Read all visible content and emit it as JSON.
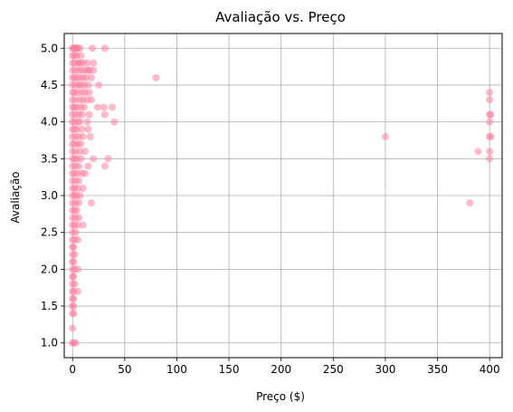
{
  "chart_data": {
    "type": "scatter",
    "title": "Avaliação vs. Preço",
    "xlabel": "Preço ($)",
    "ylabel": "Avaliação",
    "xlim": [
      -8,
      412
    ],
    "ylim": [
      0.8,
      5.2
    ],
    "xticks": [
      0,
      50,
      100,
      150,
      200,
      250,
      300,
      350,
      400
    ],
    "yticks": [
      1.0,
      1.5,
      2.0,
      2.5,
      3.0,
      3.5,
      4.0,
      4.5,
      5.0
    ],
    "xtick_labels": [
      "0",
      "50",
      "100",
      "150",
      "200",
      "250",
      "300",
      "350",
      "400"
    ],
    "ytick_labels": [
      "1.0",
      "1.5",
      "2.0",
      "2.5",
      "3.0",
      "3.5",
      "4.0",
      "4.5",
      "5.0"
    ],
    "grid": true,
    "colors": {
      "point": "#ff7f9f",
      "grid": "#b0b0b0",
      "axis": "#000000"
    },
    "point_alpha": 0.55,
    "series": [
      {
        "points": [
          [
            0,
            5.0
          ],
          [
            1,
            5.0
          ],
          [
            2,
            5.0
          ],
          [
            3,
            5.0
          ],
          [
            4,
            5.0
          ],
          [
            5,
            5.0
          ],
          [
            7,
            5.0
          ],
          [
            19,
            5.0
          ],
          [
            31,
            5.0
          ],
          [
            0,
            4.9
          ],
          [
            2,
            4.9
          ],
          [
            4,
            4.9
          ],
          [
            8,
            4.9
          ],
          [
            0,
            4.8
          ],
          [
            2,
            4.8
          ],
          [
            5,
            4.8
          ],
          [
            6,
            4.8
          ],
          [
            8,
            4.8
          ],
          [
            10,
            4.8
          ],
          [
            14,
            4.8
          ],
          [
            20,
            4.8
          ],
          [
            0,
            4.7
          ],
          [
            3,
            4.7
          ],
          [
            6,
            4.7
          ],
          [
            9,
            4.7
          ],
          [
            12,
            4.7
          ],
          [
            15,
            4.7
          ],
          [
            16,
            4.7
          ],
          [
            20,
            4.7
          ],
          [
            0,
            4.6
          ],
          [
            2,
            4.6
          ],
          [
            4,
            4.6
          ],
          [
            7,
            4.6
          ],
          [
            10,
            4.6
          ],
          [
            13,
            4.6
          ],
          [
            18,
            4.6
          ],
          [
            80,
            4.6
          ],
          [
            0,
            4.5
          ],
          [
            3,
            4.5
          ],
          [
            6,
            4.5
          ],
          [
            8,
            4.5
          ],
          [
            11,
            4.5
          ],
          [
            15,
            4.5
          ],
          [
            25,
            4.5
          ],
          [
            0,
            4.4
          ],
          [
            2,
            4.4
          ],
          [
            5,
            4.4
          ],
          [
            9,
            4.4
          ],
          [
            12,
            4.4
          ],
          [
            16,
            4.4
          ],
          [
            0,
            4.3
          ],
          [
            3,
            4.3
          ],
          [
            7,
            4.3
          ],
          [
            10,
            4.3
          ],
          [
            14,
            4.3
          ],
          [
            18,
            4.3
          ],
          [
            0,
            4.2
          ],
          [
            2,
            4.2
          ],
          [
            4,
            4.2
          ],
          [
            8,
            4.2
          ],
          [
            11,
            4.2
          ],
          [
            24,
            4.2
          ],
          [
            30,
            4.2
          ],
          [
            38,
            4.2
          ],
          [
            0,
            4.1
          ],
          [
            3,
            4.1
          ],
          [
            6,
            4.1
          ],
          [
            9,
            4.1
          ],
          [
            16,
            4.1
          ],
          [
            31,
            4.1
          ],
          [
            0,
            4.0
          ],
          [
            2,
            4.0
          ],
          [
            5,
            4.0
          ],
          [
            7,
            4.0
          ],
          [
            14,
            4.0
          ],
          [
            40,
            4.0
          ],
          [
            0,
            3.9
          ],
          [
            2,
            3.9
          ],
          [
            4,
            3.9
          ],
          [
            9,
            3.9
          ],
          [
            15,
            3.9
          ],
          [
            0,
            3.8
          ],
          [
            3,
            3.8
          ],
          [
            6,
            3.8
          ],
          [
            10,
            3.8
          ],
          [
            17,
            3.8
          ],
          [
            300,
            3.8
          ],
          [
            0,
            3.7
          ],
          [
            2,
            3.7
          ],
          [
            5,
            3.7
          ],
          [
            8,
            3.7
          ],
          [
            0,
            3.6
          ],
          [
            3,
            3.6
          ],
          [
            7,
            3.6
          ],
          [
            12,
            3.6
          ],
          [
            389,
            3.6
          ],
          [
            0,
            3.5
          ],
          [
            2,
            3.5
          ],
          [
            4,
            3.5
          ],
          [
            8,
            3.5
          ],
          [
            20,
            3.5
          ],
          [
            34,
            3.5
          ],
          [
            0,
            3.4
          ],
          [
            3,
            3.4
          ],
          [
            6,
            3.4
          ],
          [
            15,
            3.4
          ],
          [
            31,
            3.4
          ],
          [
            0,
            3.3
          ],
          [
            2,
            3.3
          ],
          [
            5,
            3.3
          ],
          [
            9,
            3.3
          ],
          [
            12,
            3.3
          ],
          [
            0,
            3.2
          ],
          [
            3,
            3.2
          ],
          [
            6,
            3.2
          ],
          [
            0,
            3.1
          ],
          [
            2,
            3.1
          ],
          [
            5,
            3.1
          ],
          [
            10,
            3.1
          ],
          [
            0,
            3.0
          ],
          [
            2,
            3.0
          ],
          [
            4,
            3.0
          ],
          [
            7,
            3.0
          ],
          [
            0,
            2.9
          ],
          [
            3,
            2.9
          ],
          [
            6,
            2.9
          ],
          [
            18,
            2.9
          ],
          [
            381,
            2.9
          ],
          [
            0,
            2.8
          ],
          [
            2,
            2.8
          ],
          [
            4,
            2.8
          ],
          [
            0,
            2.7
          ],
          [
            3,
            2.7
          ],
          [
            6,
            2.7
          ],
          [
            0,
            2.6
          ],
          [
            2,
            2.6
          ],
          [
            5,
            2.6
          ],
          [
            10,
            2.6
          ],
          [
            0,
            2.5
          ],
          [
            3,
            2.5
          ],
          [
            0,
            2.4
          ],
          [
            2,
            2.4
          ],
          [
            5,
            2.4
          ],
          [
            0,
            2.3
          ],
          [
            1,
            2.3
          ],
          [
            0,
            2.2
          ],
          [
            2,
            2.2
          ],
          [
            0,
            2.1
          ],
          [
            1,
            2.1
          ],
          [
            0,
            2.0
          ],
          [
            2,
            2.0
          ],
          [
            5,
            2.0
          ],
          [
            0,
            1.9
          ],
          [
            1,
            1.9
          ],
          [
            0,
            1.8
          ],
          [
            2,
            1.8
          ],
          [
            0,
            1.7
          ],
          [
            1,
            1.7
          ],
          [
            5,
            1.7
          ],
          [
            0,
            1.6
          ],
          [
            1,
            1.6
          ],
          [
            0,
            1.5
          ],
          [
            1,
            1.5
          ],
          [
            0,
            1.4
          ],
          [
            1,
            1.4
          ],
          [
            0,
            1.2
          ],
          [
            0,
            1.0
          ],
          [
            1,
            1.0
          ],
          [
            3,
            1.0
          ],
          [
            400,
            4.4
          ],
          [
            400,
            4.3
          ],
          [
            400,
            4.1
          ],
          [
            400,
            4.0
          ],
          [
            400,
            3.8
          ],
          [
            400,
            3.6
          ],
          [
            400,
            3.5
          ],
          [
            401,
            4.1
          ],
          [
            401,
            3.8
          ]
        ]
      }
    ]
  }
}
